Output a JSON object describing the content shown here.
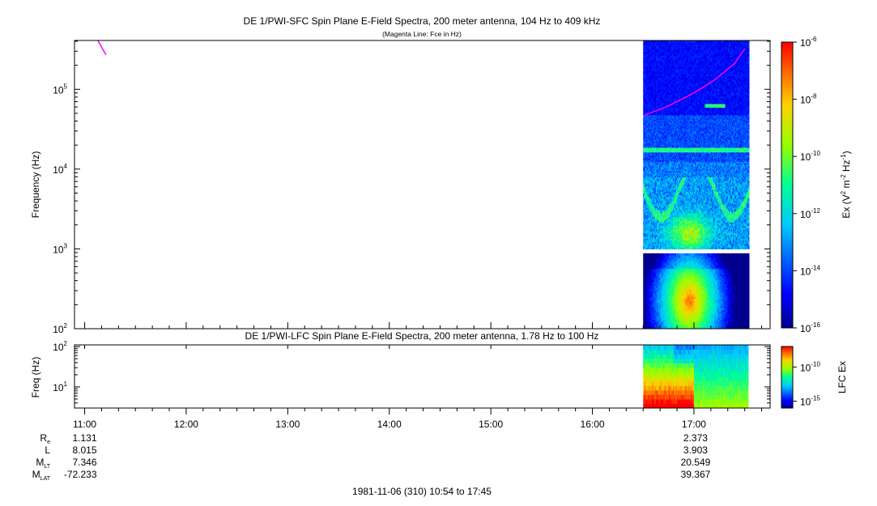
{
  "chart_data": [
    {
      "type": "heatmap",
      "title": "DE 1/PWI-SFC  Spin Plane E-Field Spectra, 200 meter antenna, 104 Hz to 409 kHz",
      "subtitle": "(Magenta Line: Fce in Hz)",
      "ylabel": "Frequency (Hz)",
      "yscale": "log",
      "ylim": [
        100,
        409000
      ],
      "y_ticks": [
        {
          "value": 100,
          "base": "10",
          "exp": "2"
        },
        {
          "value": 1000,
          "base": "10",
          "exp": "3"
        },
        {
          "value": 10000,
          "base": "10",
          "exp": "4"
        },
        {
          "value": 100000,
          "base": "10",
          "exp": "5"
        }
      ],
      "colorbar": {
        "label_main": "Ex (V",
        "label_sup1": "2",
        "label_mid": " m",
        "label_sup2": "-2",
        "label_mid2": " Hz",
        "label_sup3": "-1",
        "label_end": ")",
        "scale": "log",
        "range": [
          1e-16,
          1e-06
        ],
        "ticks": [
          {
            "value": -6,
            "base": "10",
            "exp": "-6"
          },
          {
            "value": -8,
            "base": "10",
            "exp": "-8"
          },
          {
            "value": -10,
            "base": "10",
            "exp": "-10"
          },
          {
            "value": -12,
            "base": "10",
            "exp": "-12"
          },
          {
            "value": -14,
            "base": "10",
            "exp": "-14"
          },
          {
            "value": -16,
            "base": "10",
            "exp": "-16"
          }
        ]
      },
      "data_time_range": [
        "16:30",
        "17:32"
      ],
      "fce_line": {
        "color": "#ff00ff",
        "segments": [
          {
            "points": [
              [
                11.13,
                409000
              ],
              [
                11.21,
                270000
              ]
            ]
          },
          {
            "points": [
              [
                16.51,
                47000
              ],
              [
                16.75,
                62000
              ],
              [
                17.0,
                90000
              ],
              [
                17.2,
                130000
              ],
              [
                17.4,
                210000
              ],
              [
                17.5,
                320000
              ]
            ]
          }
        ]
      }
    },
    {
      "type": "heatmap",
      "title": "DE 1/PWI-LFC  Spin Plane E-Field Spectra, 200 meter antenna, 1.78 Hz to 100 Hz",
      "ylabel": "Freq (Hz)",
      "yscale": "log",
      "ylim": [
        3,
        110
      ],
      "y_ticks": [
        {
          "value": 10,
          "base": "10",
          "exp": "1"
        },
        {
          "value": 100,
          "base": "10",
          "exp": "2"
        }
      ],
      "colorbar": {
        "label": "LFC Ex",
        "scale": "log",
        "range": [
          1e-16,
          1e-07
        ],
        "ticks": [
          {
            "value": -10,
            "base": "10",
            "exp": "-10"
          },
          {
            "value": -15,
            "base": "10",
            "exp": "-15"
          }
        ]
      },
      "data_time_range": [
        "16:30",
        "17:32"
      ]
    }
  ],
  "time_axis": {
    "range_hours": [
      10.9,
      17.75
    ],
    "tick_labels": [
      "11:00",
      "12:00",
      "13:00",
      "14:00",
      "15:00",
      "16:00",
      "17:00"
    ]
  },
  "ephemeris": [
    {
      "name": "R",
      "sub": "e",
      "values": [
        "1.131",
        "2.373"
      ]
    },
    {
      "name": "L",
      "sub": "",
      "values": [
        "8.015",
        "3.903"
      ]
    },
    {
      "name": "M",
      "sub": "LT",
      "values": [
        "7.346",
        "20.549"
      ]
    },
    {
      "name": "M",
      "sub": "LAT",
      "values": [
        "-72.233",
        "39.367"
      ]
    }
  ],
  "footer": "1981-11-06 (310) 10:54 to 17:45"
}
